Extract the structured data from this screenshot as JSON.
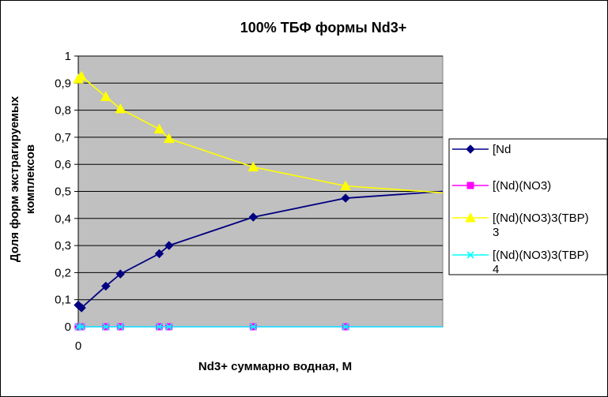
{
  "chart_data": {
    "type": "line",
    "title": "100%  ТБФ  формы Nd3+",
    "xlabel": "Nd3+ суммарно  водная, М",
    "ylabel_line1": "Доля форм экстрагируемых",
    "ylabel_line2": "комплексов",
    "ylim": [
      0,
      1
    ],
    "yticks": [
      "0",
      "0,1",
      "0,2",
      "0,3",
      "0,4",
      "0,5",
      "0,6",
      "0,7",
      "0,8",
      "0,9",
      "1"
    ],
    "xlim": [
      0,
      2.25
    ],
    "xtick_label": "0",
    "grid": true,
    "plot_background": "#c0c0c0",
    "legend_position": "right",
    "series": [
      {
        "name": "[Nd",
        "color": "#000080",
        "marker": "diamond",
        "x": [
          0.0,
          0.02,
          0.17,
          0.26,
          0.5,
          0.56,
          1.08,
          1.65,
          2.25
        ],
        "y": [
          0.08,
          0.07,
          0.15,
          0.195,
          0.27,
          0.3,
          0.405,
          0.475,
          0.5
        ]
      },
      {
        "name": "[(Nd)(NO3)",
        "color": "#ff00ff",
        "marker": "square",
        "x": [
          0.0,
          0.02,
          0.17,
          0.26,
          0.5,
          0.56,
          1.08,
          1.65,
          2.25
        ],
        "y": [
          0,
          0,
          0,
          0,
          0,
          0,
          0,
          0,
          0
        ]
      },
      {
        "name": "[(Nd)(NO3)3(TBP)",
        "name_line2": "3",
        "color": "#ffff00",
        "marker": "triangle",
        "x": [
          0.0,
          0.02,
          0.17,
          0.26,
          0.5,
          0.56,
          1.08,
          1.65,
          2.25
        ],
        "y": [
          0.915,
          0.925,
          0.85,
          0.805,
          0.73,
          0.695,
          0.59,
          0.52,
          0.495
        ]
      },
      {
        "name": "[(Nd)(NO3)3(TBP)",
        "name_line2": "4",
        "color": "#00ffff",
        "marker": "x",
        "x": [
          0.0,
          0.02,
          0.17,
          0.26,
          0.5,
          0.56,
          1.08,
          1.65,
          2.25
        ],
        "y": [
          0,
          0,
          0,
          0,
          0,
          0,
          0,
          0,
          0
        ]
      }
    ]
  }
}
